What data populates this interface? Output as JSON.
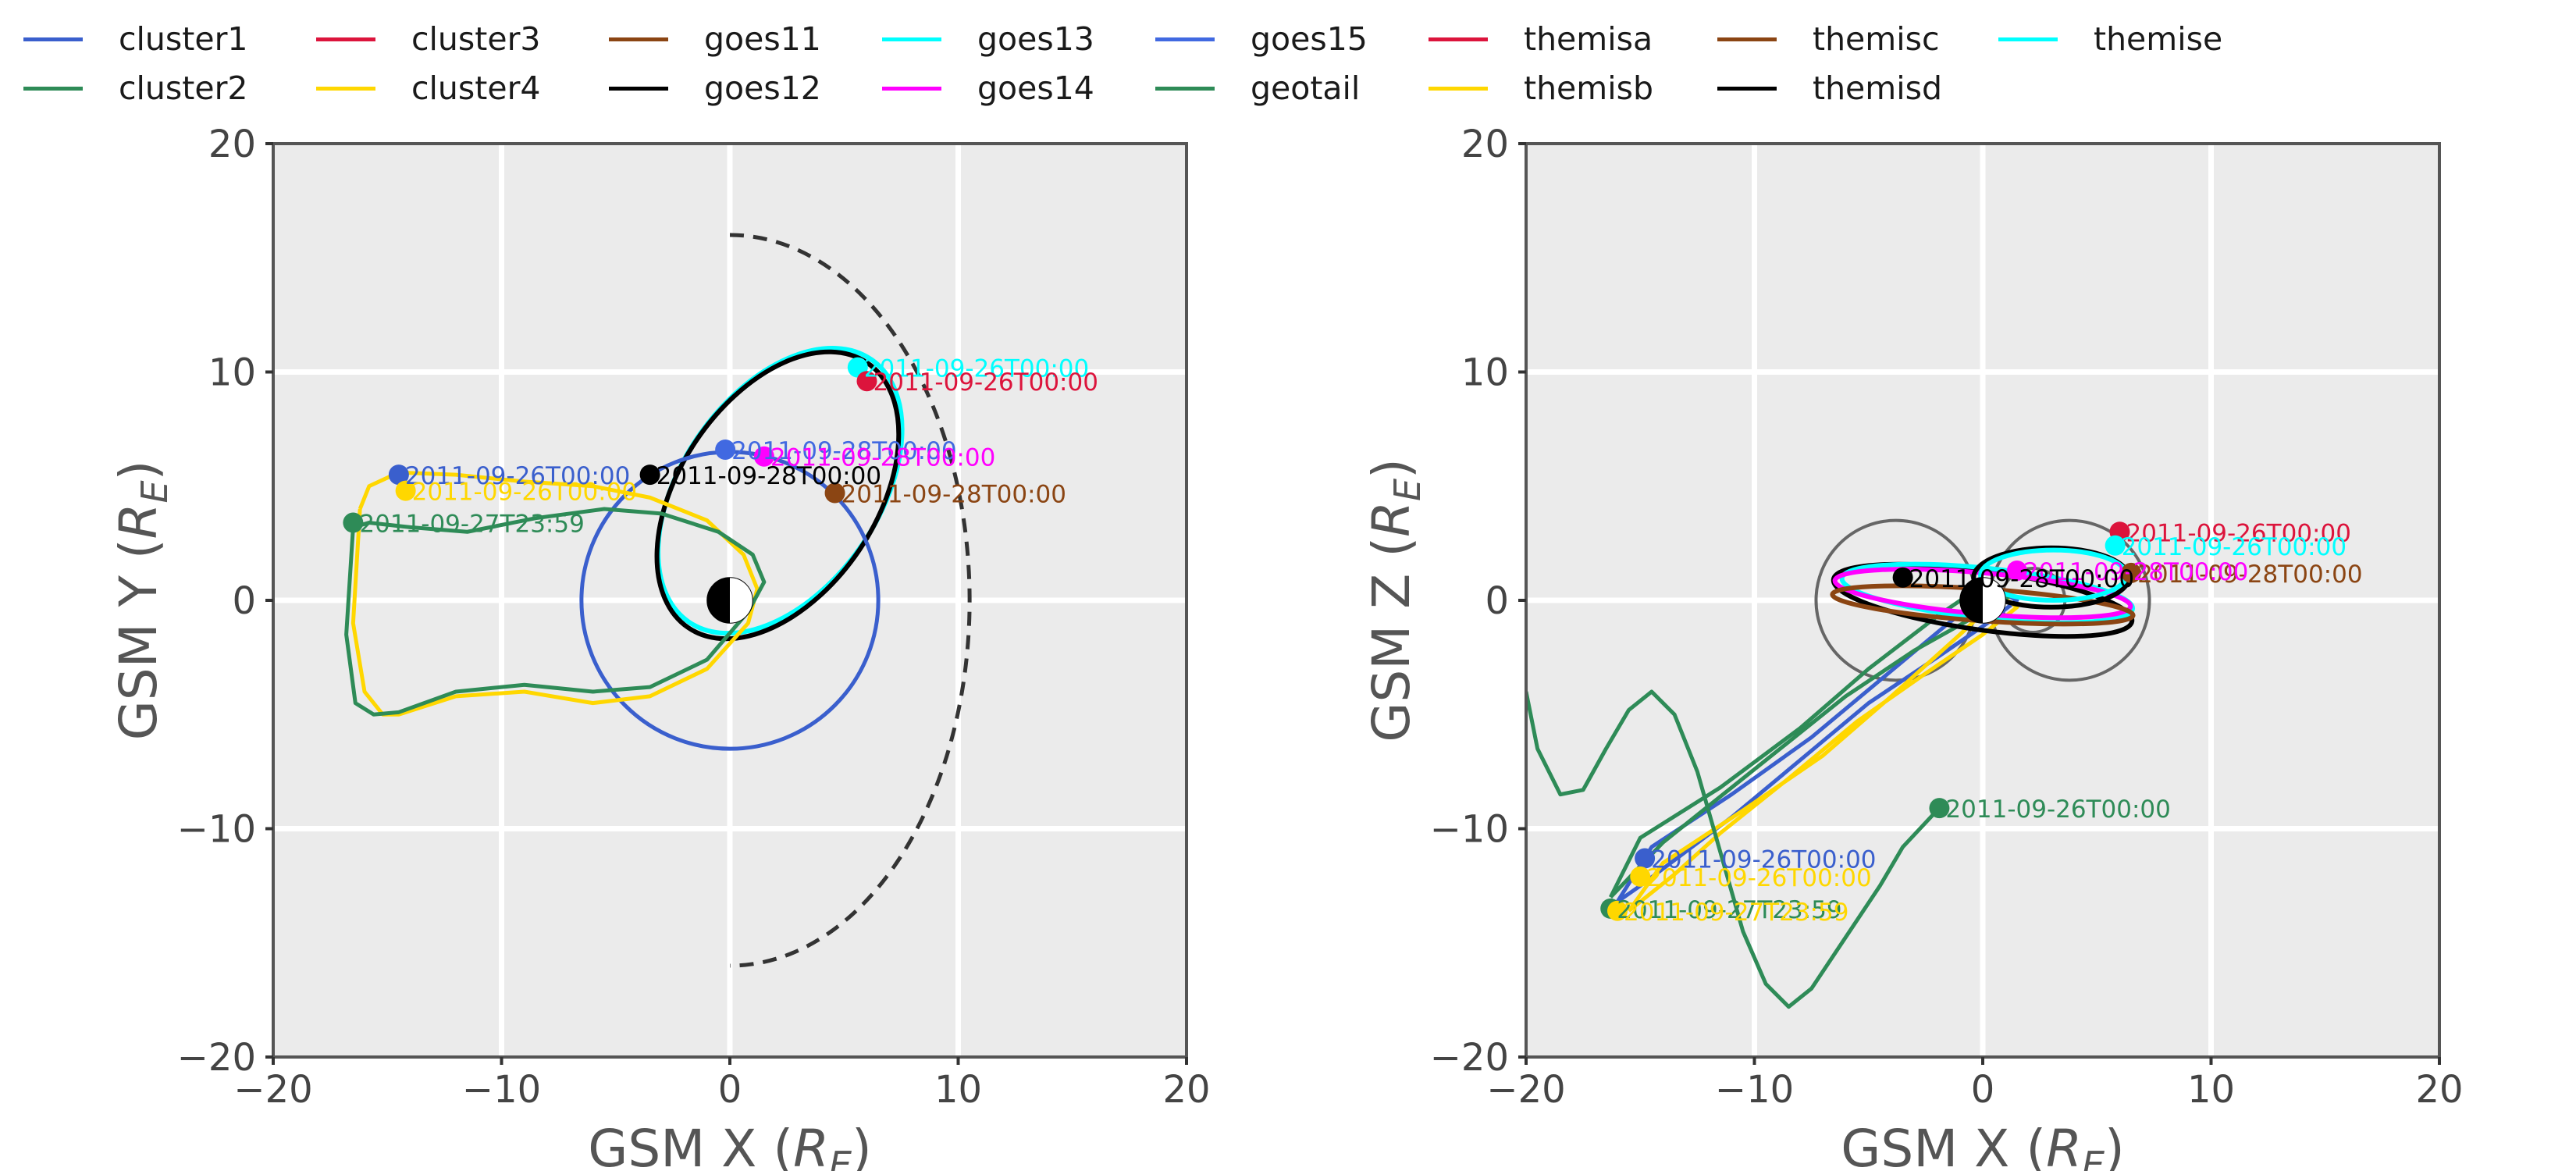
{
  "legend": {
    "entries": [
      {
        "name": "cluster1",
        "color": "#3a5fcd"
      },
      {
        "name": "cluster2",
        "color": "#2e8b57"
      },
      {
        "name": "cluster3",
        "color": "#dc143c"
      },
      {
        "name": "cluster4",
        "color": "#ffd700"
      },
      {
        "name": "goes11",
        "color": "#8b4513"
      },
      {
        "name": "goes12",
        "color": "#000000"
      },
      {
        "name": "goes13",
        "color": "#00ffff"
      },
      {
        "name": "goes14",
        "color": "#ff00ff"
      },
      {
        "name": "goes15",
        "color": "#4169e1"
      },
      {
        "name": "geotail",
        "color": "#2e8b57"
      },
      {
        "name": "themisa",
        "color": "#dc143c"
      },
      {
        "name": "themisb",
        "color": "#ffd700"
      },
      {
        "name": "themisc",
        "color": "#8b4513"
      },
      {
        "name": "themisd",
        "color": "#000000"
      },
      {
        "name": "themise",
        "color": "#00ffff"
      }
    ]
  },
  "chart_data": [
    {
      "type": "line",
      "xlabel": "GSM X (R_E)",
      "ylabel": "GSM Y (R_E)",
      "xlim": [
        -20,
        20
      ],
      "ylim": [
        -20,
        20
      ],
      "xticks": [
        "−20",
        "−10",
        "0",
        "10",
        "20"
      ],
      "yticks": [
        "−20",
        "−10",
        "0",
        "10",
        "20"
      ],
      "grid": true,
      "boundary": {
        "type": "dashed-arc",
        "nose_x": 10.5,
        "flank_y": 16
      },
      "orbits": [
        {
          "series": "goes13",
          "type": "ellipse",
          "cx": 2.2,
          "cy": 4.8,
          "rx": 7.0,
          "ry": 4.3,
          "rotation_deg": 55,
          "color": "#00ffff"
        },
        {
          "series": "goes12",
          "type": "ellipse",
          "cx": 2.1,
          "cy": 4.6,
          "rx": 7.0,
          "ry": 4.3,
          "rotation_deg": 56,
          "color": "#000000"
        },
        {
          "series": "cluster1",
          "type": "circle",
          "cx": 0,
          "cy": 0,
          "r": 6.5,
          "color": "#3a5fcd"
        },
        {
          "series": "cluster4",
          "type": "poly",
          "color": "#ffd700",
          "x": [
            -16.2,
            -16.5,
            -16.0,
            -15.2,
            -14.5,
            -12.0,
            -9.0,
            -6.0,
            -3.5,
            -1.0,
            0.8,
            1.2,
            0.6,
            -1.0,
            -3.5,
            -6.0,
            -9.0,
            -12.0,
            -14.5,
            -15.8,
            -16.2
          ],
          "y": [
            4.0,
            -1.0,
            -4.0,
            -5.0,
            -5.0,
            -4.2,
            -4.0,
            -4.5,
            -4.2,
            -3.0,
            -1.0,
            0.5,
            2.0,
            3.5,
            4.5,
            5.0,
            5.2,
            5.5,
            5.6,
            5.0,
            4.0
          ]
        },
        {
          "series": "cluster2",
          "type": "poly",
          "color": "#2e8b57",
          "x": [
            -16.5,
            -16.8,
            -16.4,
            -15.6,
            -14.5,
            -12.0,
            -9.0,
            -6.0,
            -3.5,
            -1.0,
            0.8,
            1.5,
            1.0,
            -0.5,
            -3.0,
            -5.5,
            -8.5,
            -11.5,
            -14.0,
            -15.8,
            -16.5
          ],
          "y": [
            3.2,
            -1.5,
            -4.5,
            -5.0,
            -4.9,
            -4.0,
            -3.7,
            -4.0,
            -3.8,
            -2.6,
            -0.5,
            0.8,
            2.0,
            3.0,
            3.8,
            4.0,
            3.6,
            3.0,
            3.2,
            3.4,
            3.2
          ]
        }
      ],
      "markers": [
        {
          "series": "goes13",
          "x": 5.6,
          "y": 10.2,
          "color": "#00ffff",
          "label": "2011-09-26T00:00"
        },
        {
          "series": "themisa",
          "x": 6.0,
          "y": 9.6,
          "color": "#dc143c",
          "label": "2011-09-26T00:00"
        },
        {
          "series": "goes12",
          "x": -3.5,
          "y": 5.5,
          "color": "#000000",
          "label": "2011-09-28T00:00"
        },
        {
          "series": "goes15",
          "x": -0.2,
          "y": 6.6,
          "color": "#4169e1",
          "label": "2011-09-28T00:00"
        },
        {
          "series": "goes14",
          "x": 1.5,
          "y": 6.3,
          "color": "#ff00ff",
          "label": "2011-09-28T00:00"
        },
        {
          "series": "goes11",
          "x": 4.6,
          "y": 4.7,
          "color": "#8b4513",
          "label": "2011-09-28T00:00"
        },
        {
          "series": "cluster1",
          "x": -14.5,
          "y": 5.5,
          "color": "#3a5fcd",
          "label": "2011-09-26T00:00"
        },
        {
          "series": "cluster4",
          "x": -14.2,
          "y": 4.8,
          "color": "#ffd700",
          "label": "2011-09-26T00:00"
        },
        {
          "series": "cluster2",
          "x": -16.5,
          "y": 3.4,
          "color": "#2e8b57",
          "label": "2011-09-27T23:59"
        }
      ]
    },
    {
      "type": "line",
      "xlabel": "GSM X (R_E)",
      "ylabel": "GSM Z (R_E)",
      "xlim": [
        -20,
        20
      ],
      "ylim": [
        -20,
        20
      ],
      "xticks": [
        "−20",
        "−10",
        "0",
        "10",
        "20"
      ],
      "yticks": [
        "−20",
        "−10",
        "0",
        "10",
        "20"
      ],
      "grid": true,
      "orbits": [
        {
          "series": "cluster1",
          "type": "poly",
          "color": "#3a5fcd",
          "x": [
            -16.0,
            -14.5,
            -11.0,
            -7.5,
            -4.5,
            -1.5,
            0.5,
            1.5,
            0.2,
            -2.0,
            -5.0,
            -8.0,
            -11.0,
            -13.0,
            -15.0,
            -16.0
          ],
          "y": [
            -13.2,
            -10.8,
            -8.5,
            -6.0,
            -3.5,
            -1.0,
            0.5,
            0.0,
            -1.0,
            -2.5,
            -4.5,
            -7.0,
            -9.5,
            -11.0,
            -12.5,
            -13.2
          ]
        },
        {
          "series": "cluster4",
          "type": "poly",
          "color": "#ffd700",
          "x": [
            -15.5,
            -14.0,
            -10.5,
            -7.0,
            -4.0,
            -1.0,
            0.8,
            1.5,
            0.0,
            -2.5,
            -5.5,
            -8.5,
            -11.5,
            -13.5,
            -15.5
          ],
          "y": [
            -13.6,
            -11.5,
            -9.2,
            -6.8,
            -4.2,
            -1.5,
            0.2,
            -0.3,
            -1.5,
            -3.2,
            -5.3,
            -7.8,
            -10.2,
            -12.0,
            -13.6
          ]
        },
        {
          "series": "cluster2",
          "type": "poly",
          "color": "#2e8b57",
          "x": [
            -16.3,
            -15.0,
            -11.5,
            -8.0,
            -5.0,
            -2.0,
            0.2,
            1.2,
            -0.5,
            -3.0,
            -6.0,
            -9.0,
            -12.0,
            -14.0,
            -16.3
          ],
          "y": [
            -13.0,
            -10.4,
            -8.2,
            -5.6,
            -3.0,
            -0.7,
            0.8,
            0.2,
            -0.8,
            -2.2,
            -4.2,
            -6.6,
            -9.0,
            -10.6,
            -13.0
          ]
        },
        {
          "series": "geotail",
          "type": "poly",
          "color": "#2e8b57",
          "x": [
            -20.0,
            -19.5,
            -18.5,
            -17.5,
            -16.5,
            -15.5,
            -14.5,
            -13.5,
            -12.5,
            -11.5,
            -10.5,
            -9.5,
            -8.5,
            -7.5,
            -6.5,
            -5.5,
            -4.5,
            -3.5,
            -2.0
          ],
          "y": [
            -4.0,
            -6.5,
            -8.5,
            -8.3,
            -6.5,
            -4.8,
            -4.0,
            -5.0,
            -7.5,
            -11.0,
            -14.5,
            -16.8,
            -17.8,
            -17.0,
            -15.5,
            -14.0,
            -12.5,
            -10.8,
            -9.2
          ]
        },
        {
          "series": "goes12",
          "type": "ellipse",
          "cx": 0.0,
          "cy": 0.0,
          "rx": 6.6,
          "ry": 1.3,
          "rotation_deg": -8,
          "color": "#000000"
        },
        {
          "series": "goes13",
          "type": "ellipse",
          "cx": 0.2,
          "cy": 0.3,
          "rx": 6.4,
          "ry": 1.1,
          "rotation_deg": -6,
          "color": "#00ffff"
        },
        {
          "series": "goes14",
          "type": "ellipse",
          "cx": 0.0,
          "cy": 0.3,
          "rx": 6.5,
          "ry": 0.9,
          "rotation_deg": -5,
          "color": "#ff00ff"
        },
        {
          "series": "goes11",
          "type": "ellipse",
          "cx": 0.0,
          "cy": -0.2,
          "rx": 6.6,
          "ry": 0.7,
          "rotation_deg": -4,
          "color": "#8b4513"
        },
        {
          "series": "themisd",
          "type": "ellipse",
          "cx": 3.0,
          "cy": 1.0,
          "rx": 3.4,
          "ry": 1.3,
          "rotation_deg": 0,
          "color": "#000000"
        },
        {
          "series": "themise",
          "type": "ellipse",
          "cx": 3.1,
          "cy": 1.1,
          "rx": 3.2,
          "ry": 1.1,
          "rotation_deg": 0,
          "color": "#00ffff"
        }
      ],
      "reference_shapes": [
        {
          "type": "circle",
          "cx": -3.8,
          "cy": 0.0,
          "r": 3.5,
          "color": "#666666"
        },
        {
          "type": "circle",
          "cx": 3.8,
          "cy": 0.0,
          "r": 3.5,
          "color": "#666666"
        },
        {
          "type": "circle",
          "cx": 2.2,
          "cy": 0.0,
          "r": 1.4,
          "color": "#666666"
        }
      ],
      "markers": [
        {
          "series": "themisa",
          "x": 6.0,
          "y": 3.0,
          "color": "#dc143c",
          "label": "2011-09-26T00:00"
        },
        {
          "series": "themise",
          "x": 5.8,
          "y": 2.4,
          "color": "#00ffff",
          "label": "2011-09-26T00:00"
        },
        {
          "series": "goes11",
          "x": 6.5,
          "y": 1.2,
          "color": "#8b4513",
          "label": "2011-09-28T00:00"
        },
        {
          "series": "goes14",
          "x": 1.5,
          "y": 1.3,
          "color": "#ff00ff",
          "label": "2011-09-28T00:00"
        },
        {
          "series": "goes12",
          "x": -3.5,
          "y": 1.0,
          "color": "#000000",
          "label": "2011-09-28T00:00"
        },
        {
          "series": "geotail",
          "x": -1.9,
          "y": -9.1,
          "color": "#2e8b57",
          "label": "2011-09-26T00:00"
        },
        {
          "series": "cluster1",
          "x": -14.8,
          "y": -11.3,
          "color": "#3a5fcd",
          "label": "2011-09-26T00:00"
        },
        {
          "series": "cluster4",
          "x": -15.0,
          "y": -12.1,
          "color": "#ffd700",
          "label": "2011-09-26T00:00"
        },
        {
          "series": "cluster2",
          "x": -16.3,
          "y": -13.5,
          "color": "#2e8b57",
          "label": "2011-09-27T23:59"
        },
        {
          "series": "cluster4",
          "x": -16.0,
          "y": -13.6,
          "color": "#ffd700",
          "label": "2011-09-27T23:59"
        }
      ]
    }
  ]
}
